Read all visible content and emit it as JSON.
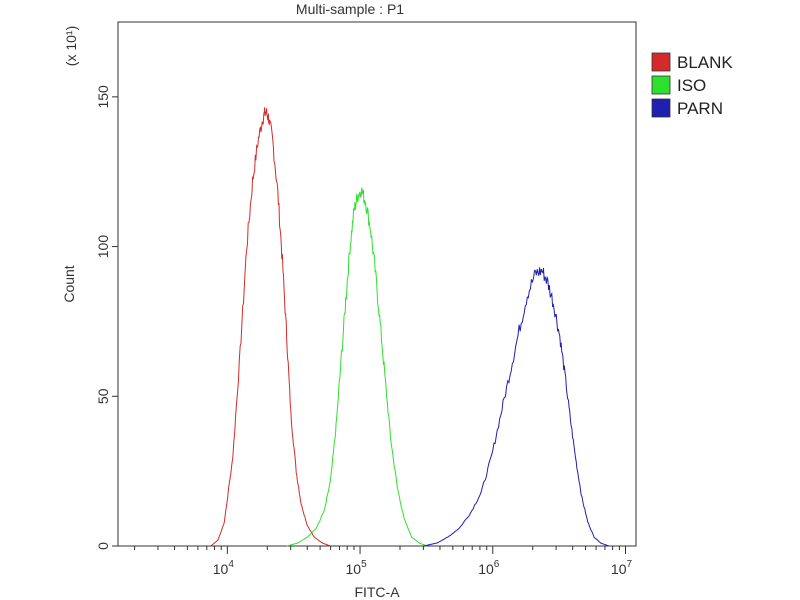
{
  "chart_data": {
    "type": "line",
    "title": "Multi-sample : P1",
    "xlabel": "FITC-A",
    "ylabel": "Count",
    "y_multiplier_label": "(x 10¹)",
    "x_scale": "log",
    "xlim": [
      1500,
      12000000
    ],
    "ylim": [
      0,
      175
    ],
    "x_ticks": [
      {
        "value": 10000,
        "base": "10",
        "exp": "4"
      },
      {
        "value": 100000,
        "base": "10",
        "exp": "5"
      },
      {
        "value": 1000000,
        "base": "10",
        "exp": "6"
      },
      {
        "value": 10000000,
        "base": "10",
        "exp": "7"
      }
    ],
    "y_ticks": [
      {
        "value": 0,
        "label": "0"
      },
      {
        "value": 50,
        "label": "50"
      },
      {
        "value": 100,
        "label": "100"
      },
      {
        "value": 150,
        "label": "150"
      }
    ],
    "legend_position": "right",
    "series": [
      {
        "name": "BLANK",
        "color": "#d42a2a",
        "points": [
          [
            7500,
            0
          ],
          [
            8500,
            2
          ],
          [
            9500,
            8
          ],
          [
            11000,
            30
          ],
          [
            12500,
            65
          ],
          [
            14000,
            100
          ],
          [
            15500,
            122
          ],
          [
            17000,
            135
          ],
          [
            18500,
            143
          ],
          [
            19500,
            145
          ],
          [
            20500,
            143
          ],
          [
            22000,
            135
          ],
          [
            24000,
            118
          ],
          [
            26000,
            95
          ],
          [
            28000,
            70
          ],
          [
            30000,
            45
          ],
          [
            33000,
            25
          ],
          [
            36000,
            14
          ],
          [
            40000,
            7
          ],
          [
            45000,
            3
          ],
          [
            52000,
            1
          ],
          [
            60000,
            0
          ]
        ]
      },
      {
        "name": "ISO",
        "color": "#2ee02e",
        "points": [
          [
            28000,
            0
          ],
          [
            34000,
            1
          ],
          [
            40000,
            3
          ],
          [
            47000,
            6
          ],
          [
            54000,
            12
          ],
          [
            60000,
            22
          ],
          [
            66000,
            40
          ],
          [
            72000,
            62
          ],
          [
            78000,
            82
          ],
          [
            84000,
            100
          ],
          [
            90000,
            112
          ],
          [
            96000,
            117
          ],
          [
            102000,
            119
          ],
          [
            110000,
            115
          ],
          [
            120000,
            106
          ],
          [
            130000,
            92
          ],
          [
            142000,
            74
          ],
          [
            155000,
            55
          ],
          [
            170000,
            36
          ],
          [
            190000,
            20
          ],
          [
            215000,
            9
          ],
          [
            245000,
            3
          ],
          [
            280000,
            1
          ],
          [
            320000,
            0
          ]
        ]
      },
      {
        "name": "PARN",
        "color": "#1f1fb0",
        "points": [
          [
            300000,
            0
          ],
          [
            380000,
            1
          ],
          [
            460000,
            3
          ],
          [
            560000,
            6
          ],
          [
            680000,
            11
          ],
          [
            820000,
            18
          ],
          [
            980000,
            30
          ],
          [
            1150000,
            44
          ],
          [
            1350000,
            58
          ],
          [
            1580000,
            72
          ],
          [
            1820000,
            84
          ],
          [
            2100000,
            91
          ],
          [
            2350000,
            92
          ],
          [
            2600000,
            88
          ],
          [
            2900000,
            80
          ],
          [
            3200000,
            70
          ],
          [
            3500000,
            57
          ],
          [
            3850000,
            42
          ],
          [
            4250000,
            28
          ],
          [
            4700000,
            16
          ],
          [
            5200000,
            8
          ],
          [
            5800000,
            3
          ],
          [
            6500000,
            1
          ],
          [
            7500000,
            0
          ]
        ]
      }
    ]
  }
}
